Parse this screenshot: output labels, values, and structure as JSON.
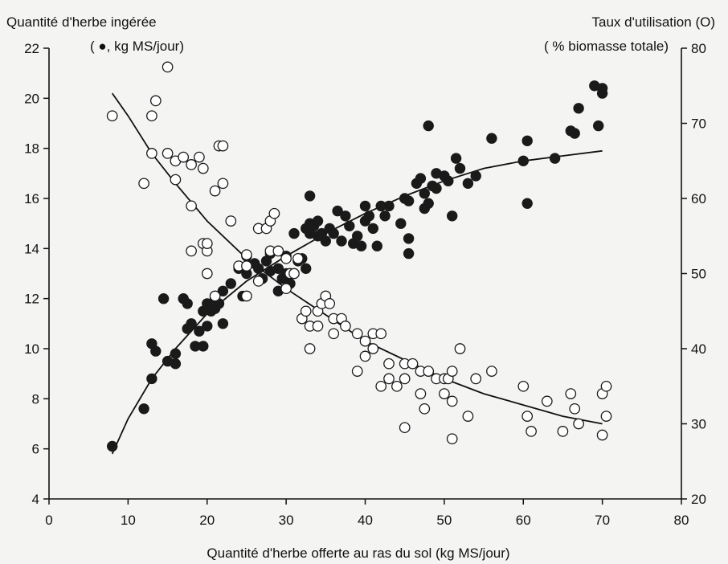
{
  "chart_data": {
    "type": "scatter",
    "title": "",
    "left_axis_label": {
      "line1": "Quantité d'herbe ingérée",
      "line2": "( ●, kg MS/jour)"
    },
    "right_axis_label": {
      "line1": "Taux d'utilisation (O)",
      "line2": "( % biomasse totale)"
    },
    "xlabel": "Quantité d'herbe offerte au ras du sol (kg MS/jour)",
    "xlim": [
      0,
      80
    ],
    "ylim_left": [
      4,
      22
    ],
    "ylim_right": [
      20,
      80
    ],
    "x_ticks": [
      0,
      10,
      20,
      30,
      40,
      50,
      60,
      70,
      80
    ],
    "y_left_ticks": [
      4,
      6,
      8,
      10,
      12,
      14,
      16,
      18,
      20,
      22
    ],
    "y_right_ticks": [
      20,
      30,
      40,
      50,
      60,
      70,
      80
    ],
    "grid": false,
    "series": [
      {
        "marker": "filled-circle",
        "axis": "left",
        "points": [
          [
            8,
            6.1
          ],
          [
            12,
            7.6
          ],
          [
            13,
            8.8
          ],
          [
            13,
            10.2
          ],
          [
            13.5,
            9.9
          ],
          [
            14.5,
            12
          ],
          [
            15,
            9.5
          ],
          [
            16,
            9.4
          ],
          [
            16,
            9.8
          ],
          [
            17,
            12
          ],
          [
            17.5,
            11.8
          ],
          [
            17.5,
            10.8
          ],
          [
            18,
            11
          ],
          [
            18.5,
            10.1
          ],
          [
            19,
            10.7
          ],
          [
            19.5,
            10.1
          ],
          [
            19.5,
            11.5
          ],
          [
            20,
            11.8
          ],
          [
            20,
            10.9
          ],
          [
            20.5,
            11.5
          ],
          [
            21,
            11.6
          ],
          [
            21,
            12
          ],
          [
            21.5,
            11.8
          ],
          [
            22,
            11
          ],
          [
            22,
            12.3
          ],
          [
            23,
            12.6
          ],
          [
            24,
            13.2
          ],
          [
            24.5,
            12.1
          ],
          [
            25,
            13
          ],
          [
            25,
            13.7
          ],
          [
            26,
            13.4
          ],
          [
            26.5,
            13.2
          ],
          [
            27,
            12.8
          ],
          [
            27.5,
            13.5
          ],
          [
            28,
            13.1
          ],
          [
            28,
            13.8
          ],
          [
            29,
            13.2
          ],
          [
            29,
            12.3
          ],
          [
            29.5,
            12.8
          ],
          [
            30,
            13.7
          ],
          [
            30,
            13
          ],
          [
            30.5,
            12.6
          ],
          [
            31,
            14.6
          ],
          [
            31.5,
            13.5
          ],
          [
            32,
            13.6
          ],
          [
            32.5,
            13.2
          ],
          [
            32.5,
            14.8
          ],
          [
            33,
            14.6
          ],
          [
            33,
            15
          ],
          [
            33,
            16.1
          ],
          [
            33.5,
            14.9
          ],
          [
            34,
            14.5
          ],
          [
            34,
            15.1
          ],
          [
            34.5,
            14.6
          ],
          [
            35,
            14.3
          ],
          [
            35.5,
            14.8
          ],
          [
            36,
            14.6
          ],
          [
            36.5,
            15.5
          ],
          [
            37,
            14.3
          ],
          [
            37.5,
            15.3
          ],
          [
            38,
            14.9
          ],
          [
            38.5,
            14.2
          ],
          [
            39,
            14.5
          ],
          [
            39.5,
            14.1
          ],
          [
            40,
            15.1
          ],
          [
            40,
            15.7
          ],
          [
            40.5,
            15.3
          ],
          [
            41,
            14.8
          ],
          [
            41.5,
            14.1
          ],
          [
            42,
            15.7
          ],
          [
            42.5,
            15.3
          ],
          [
            43,
            15.7
          ],
          [
            44.5,
            15
          ],
          [
            45,
            16
          ],
          [
            45.5,
            15.9
          ],
          [
            45.5,
            14.4
          ],
          [
            45.5,
            13.8
          ],
          [
            46.5,
            16.6
          ],
          [
            47,
            16.8
          ],
          [
            47.5,
            15.6
          ],
          [
            47.5,
            16.2
          ],
          [
            48,
            18.9
          ],
          [
            48,
            15.8
          ],
          [
            48.5,
            16.5
          ],
          [
            49,
            17
          ],
          [
            49,
            16.4
          ],
          [
            50,
            16.9
          ],
          [
            50.5,
            16.7
          ],
          [
            51,
            15.3
          ],
          [
            51.5,
            17.6
          ],
          [
            52,
            17.2
          ],
          [
            53,
            16.6
          ],
          [
            54,
            16.9
          ],
          [
            56,
            18.4
          ],
          [
            60,
            17.5
          ],
          [
            60.5,
            18.3
          ],
          [
            60.5,
            15.8
          ],
          [
            64,
            17.6
          ],
          [
            66,
            18.7
          ],
          [
            66.5,
            18.6
          ],
          [
            67,
            19.6
          ],
          [
            69,
            20.5
          ],
          [
            69.5,
            18.9
          ],
          [
            70,
            20.2
          ],
          [
            70,
            20.4
          ]
        ]
      },
      {
        "marker": "open-circle",
        "axis": "right",
        "points": [
          [
            8,
            71
          ],
          [
            12,
            62
          ],
          [
            13,
            66
          ],
          [
            13,
            71
          ],
          [
            13.5,
            73
          ],
          [
            15,
            77.5
          ],
          [
            15,
            66
          ],
          [
            16,
            65
          ],
          [
            16,
            62.5
          ],
          [
            17,
            65.5
          ],
          [
            18,
            64.5
          ],
          [
            18,
            59
          ],
          [
            18,
            53
          ],
          [
            19,
            65.5
          ],
          [
            19.5,
            54
          ],
          [
            19.5,
            64
          ],
          [
            20,
            53
          ],
          [
            20,
            50
          ],
          [
            20,
            54
          ],
          [
            21,
            47
          ],
          [
            21,
            61
          ],
          [
            21.5,
            67
          ],
          [
            22,
            67
          ],
          [
            22,
            62
          ],
          [
            23,
            57
          ],
          [
            24,
            51
          ],
          [
            25,
            52.5
          ],
          [
            25,
            51
          ],
          [
            25,
            47
          ],
          [
            26.5,
            49
          ],
          [
            26.5,
            56
          ],
          [
            27.5,
            56
          ],
          [
            28,
            53
          ],
          [
            28,
            57
          ],
          [
            28.5,
            58
          ],
          [
            29,
            53
          ],
          [
            30,
            48
          ],
          [
            30,
            52
          ],
          [
            30.5,
            50
          ],
          [
            31,
            50
          ],
          [
            31.5,
            52
          ],
          [
            32,
            44
          ],
          [
            32.5,
            45
          ],
          [
            33,
            40
          ],
          [
            33,
            43
          ],
          [
            34,
            43
          ],
          [
            34,
            45
          ],
          [
            34.5,
            46
          ],
          [
            35,
            47
          ],
          [
            35.5,
            46
          ],
          [
            36,
            42
          ],
          [
            36,
            44
          ],
          [
            37,
            44
          ],
          [
            37.5,
            43
          ],
          [
            39,
            37
          ],
          [
            39,
            42
          ],
          [
            40,
            41
          ],
          [
            40,
            39
          ],
          [
            41,
            42
          ],
          [
            41,
            40
          ],
          [
            42,
            35
          ],
          [
            42,
            42
          ],
          [
            43,
            38
          ],
          [
            43,
            36
          ],
          [
            44,
            35
          ],
          [
            45,
            38
          ],
          [
            45,
            36
          ],
          [
            45,
            29.5
          ],
          [
            46,
            38
          ],
          [
            47,
            37
          ],
          [
            47,
            34
          ],
          [
            47.5,
            32
          ],
          [
            48,
            37
          ],
          [
            49,
            36
          ],
          [
            50,
            36
          ],
          [
            50,
            34
          ],
          [
            50.5,
            36
          ],
          [
            51,
            37
          ],
          [
            51,
            33
          ],
          [
            51,
            28
          ],
          [
            52,
            40
          ],
          [
            53,
            31
          ],
          [
            54,
            36
          ],
          [
            56,
            37
          ],
          [
            60,
            35
          ],
          [
            60.5,
            31
          ],
          [
            61,
            29
          ],
          [
            63,
            33
          ],
          [
            65,
            29
          ],
          [
            66,
            34
          ],
          [
            66.5,
            32
          ],
          [
            67,
            30
          ],
          [
            70,
            28.5
          ],
          [
            70,
            34
          ],
          [
            70.5,
            35
          ],
          [
            70.5,
            31
          ]
        ]
      }
    ],
    "curves": [
      {
        "axis": "left",
        "points": [
          [
            8,
            5.8
          ],
          [
            10,
            7.2
          ],
          [
            13,
            8.8
          ],
          [
            16,
            10
          ],
          [
            20,
            11.4
          ],
          [
            25,
            12.7
          ],
          [
            30,
            13.7
          ],
          [
            35,
            14.6
          ],
          [
            40,
            15.4
          ],
          [
            45,
            16.1
          ],
          [
            50,
            16.7
          ],
          [
            55,
            17.2
          ],
          [
            60,
            17.5
          ],
          [
            65,
            17.7
          ],
          [
            70,
            17.9
          ]
        ]
      },
      {
        "axis": "right",
        "points": [
          [
            8,
            74
          ],
          [
            10,
            71
          ],
          [
            13,
            66
          ],
          [
            16,
            62
          ],
          [
            20,
            57
          ],
          [
            25,
            52
          ],
          [
            30,
            48
          ],
          [
            35,
            44.5
          ],
          [
            40,
            41
          ],
          [
            45,
            38.5
          ],
          [
            50,
            36
          ],
          [
            55,
            34
          ],
          [
            60,
            32.5
          ],
          [
            65,
            31
          ],
          [
            70,
            30
          ]
        ]
      }
    ],
    "legend": "none"
  }
}
